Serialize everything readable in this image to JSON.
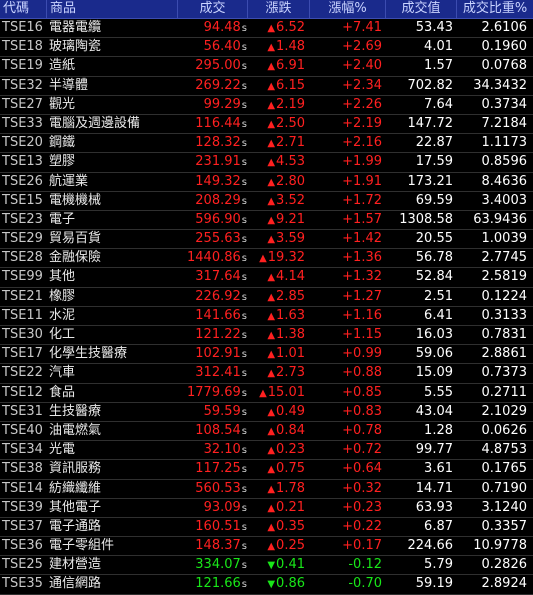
{
  "columns": {
    "code": "代碼",
    "name": "商品",
    "price": "成交",
    "change": "漲跌",
    "pct": "漲幅%",
    "amount": "成交值",
    "ratio": "成交比重%"
  },
  "up_color": "#ff2020",
  "down_color": "#19e619",
  "header_bg": "#1a2a8c",
  "rows": [
    {
      "code": "TSE16",
      "name": "電器電纜",
      "price": "94.48",
      "flag": "s",
      "dir": "up",
      "change": "6.52",
      "pct": "+7.41",
      "amount": "53.43",
      "ratio": "2.6106"
    },
    {
      "code": "TSE18",
      "name": "玻璃陶瓷",
      "price": "56.40",
      "flag": "s",
      "dir": "up",
      "change": "1.48",
      "pct": "+2.69",
      "amount": "4.01",
      "ratio": "0.1960"
    },
    {
      "code": "TSE19",
      "name": "造紙",
      "price": "295.00",
      "flag": "s",
      "dir": "up",
      "change": "6.91",
      "pct": "+2.40",
      "amount": "1.57",
      "ratio": "0.0768"
    },
    {
      "code": "TSE32",
      "name": "半導體",
      "price": "269.22",
      "flag": "s",
      "dir": "up",
      "change": "6.15",
      "pct": "+2.34",
      "amount": "702.82",
      "ratio": "34.3432"
    },
    {
      "code": "TSE27",
      "name": "觀光",
      "price": "99.29",
      "flag": "s",
      "dir": "up",
      "change": "2.19",
      "pct": "+2.26",
      "amount": "7.64",
      "ratio": "0.3734"
    },
    {
      "code": "TSE33",
      "name": "電腦及週邊設備",
      "price": "116.44",
      "flag": "s",
      "dir": "up",
      "change": "2.50",
      "pct": "+2.19",
      "amount": "147.72",
      "ratio": "7.2184"
    },
    {
      "code": "TSE20",
      "name": "鋼鐵",
      "price": "128.32",
      "flag": "s",
      "dir": "up",
      "change": "2.71",
      "pct": "+2.16",
      "amount": "22.87",
      "ratio": "1.1173"
    },
    {
      "code": "TSE13",
      "name": "塑膠",
      "price": "231.91",
      "flag": "s",
      "dir": "up",
      "change": "4.53",
      "pct": "+1.99",
      "amount": "17.59",
      "ratio": "0.8596"
    },
    {
      "code": "TSE26",
      "name": "航運業",
      "price": "149.32",
      "flag": "s",
      "dir": "up",
      "change": "2.80",
      "pct": "+1.91",
      "amount": "173.21",
      "ratio": "8.4636"
    },
    {
      "code": "TSE15",
      "name": "電機機械",
      "price": "208.29",
      "flag": "s",
      "dir": "up",
      "change": "3.52",
      "pct": "+1.72",
      "amount": "69.59",
      "ratio": "3.4003"
    },
    {
      "code": "TSE23",
      "name": "電子",
      "price": "596.90",
      "flag": "s",
      "dir": "up",
      "change": "9.21",
      "pct": "+1.57",
      "amount": "1308.58",
      "ratio": "63.9436"
    },
    {
      "code": "TSE29",
      "name": "貿易百貨",
      "price": "255.63",
      "flag": "s",
      "dir": "up",
      "change": "3.59",
      "pct": "+1.42",
      "amount": "20.55",
      "ratio": "1.0039"
    },
    {
      "code": "TSE28",
      "name": "金融保險",
      "price": "1440.86",
      "flag": "s",
      "dir": "up",
      "change": "19.32",
      "pct": "+1.36",
      "amount": "56.78",
      "ratio": "2.7745"
    },
    {
      "code": "TSE99",
      "name": "其他",
      "price": "317.64",
      "flag": "s",
      "dir": "up",
      "change": "4.14",
      "pct": "+1.32",
      "amount": "52.84",
      "ratio": "2.5819"
    },
    {
      "code": "TSE21",
      "name": "橡膠",
      "price": "226.92",
      "flag": "s",
      "dir": "up",
      "change": "2.85",
      "pct": "+1.27",
      "amount": "2.51",
      "ratio": "0.1224"
    },
    {
      "code": "TSE11",
      "name": "水泥",
      "price": "141.66",
      "flag": "s",
      "dir": "up",
      "change": "1.63",
      "pct": "+1.16",
      "amount": "6.41",
      "ratio": "0.3133"
    },
    {
      "code": "TSE30",
      "name": "化工",
      "price": "121.22",
      "flag": "s",
      "dir": "up",
      "change": "1.38",
      "pct": "+1.15",
      "amount": "16.03",
      "ratio": "0.7831"
    },
    {
      "code": "TSE17",
      "name": "化學生技醫療",
      "price": "102.91",
      "flag": "s",
      "dir": "up",
      "change": "1.01",
      "pct": "+0.99",
      "amount": "59.06",
      "ratio": "2.8861"
    },
    {
      "code": "TSE22",
      "name": "汽車",
      "price": "312.41",
      "flag": "s",
      "dir": "up",
      "change": "2.73",
      "pct": "+0.88",
      "amount": "15.09",
      "ratio": "0.7373"
    },
    {
      "code": "TSE12",
      "name": "食品",
      "price": "1779.69",
      "flag": "s",
      "dir": "up",
      "change": "15.01",
      "pct": "+0.85",
      "amount": "5.55",
      "ratio": "0.2711"
    },
    {
      "code": "TSE31",
      "name": "生技醫療",
      "price": "59.59",
      "flag": "s",
      "dir": "up",
      "change": "0.49",
      "pct": "+0.83",
      "amount": "43.04",
      "ratio": "2.1029"
    },
    {
      "code": "TSE40",
      "name": "油電燃氣",
      "price": "108.54",
      "flag": "s",
      "dir": "up",
      "change": "0.84",
      "pct": "+0.78",
      "amount": "1.28",
      "ratio": "0.0626"
    },
    {
      "code": "TSE34",
      "name": "光電",
      "price": "32.10",
      "flag": "s",
      "dir": "up",
      "change": "0.23",
      "pct": "+0.72",
      "amount": "99.77",
      "ratio": "4.8753"
    },
    {
      "code": "TSE38",
      "name": "資訊服務",
      "price": "117.25",
      "flag": "s",
      "dir": "up",
      "change": "0.75",
      "pct": "+0.64",
      "amount": "3.61",
      "ratio": "0.1765"
    },
    {
      "code": "TSE14",
      "name": "紡織纖維",
      "price": "560.53",
      "flag": "s",
      "dir": "up",
      "change": "1.78",
      "pct": "+0.32",
      "amount": "14.71",
      "ratio": "0.7190"
    },
    {
      "code": "TSE39",
      "name": "其他電子",
      "price": "93.09",
      "flag": "s",
      "dir": "up",
      "change": "0.21",
      "pct": "+0.23",
      "amount": "63.93",
      "ratio": "3.1240"
    },
    {
      "code": "TSE37",
      "name": "電子通路",
      "price": "160.51",
      "flag": "s",
      "dir": "up",
      "change": "0.35",
      "pct": "+0.22",
      "amount": "6.87",
      "ratio": "0.3357"
    },
    {
      "code": "TSE36",
      "name": "電子零組件",
      "price": "148.37",
      "flag": "s",
      "dir": "up",
      "change": "0.25",
      "pct": "+0.17",
      "amount": "224.66",
      "ratio": "10.9778"
    },
    {
      "code": "TSE25",
      "name": "建材營造",
      "price": "334.07",
      "flag": "s",
      "dir": "down",
      "change": "0.41",
      "pct": "-0.12",
      "amount": "5.79",
      "ratio": "0.2826"
    },
    {
      "code": "TSE35",
      "name": "通信網路",
      "price": "121.66",
      "flag": "s",
      "dir": "down",
      "change": "0.86",
      "pct": "-0.70",
      "amount": "59.19",
      "ratio": "2.8924"
    }
  ]
}
